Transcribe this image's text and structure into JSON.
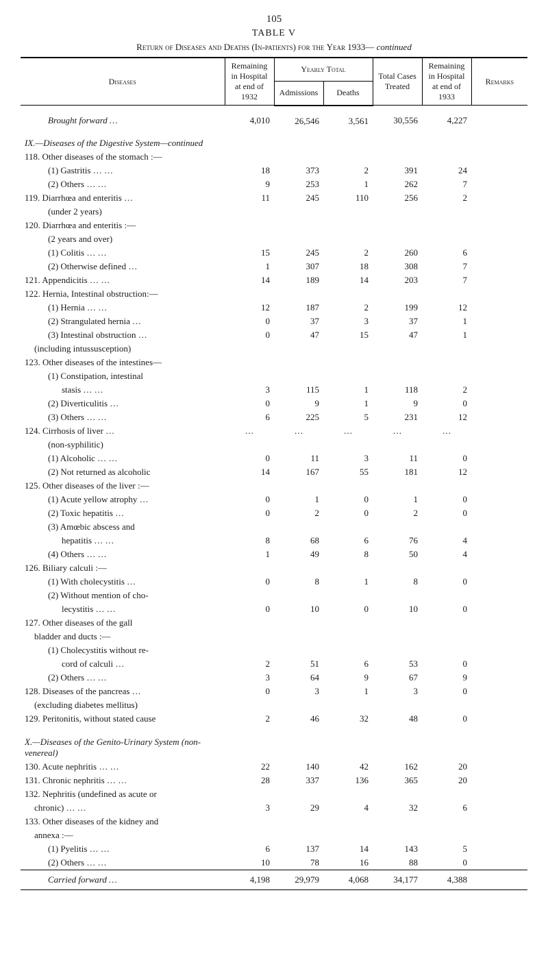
{
  "page_number": "105",
  "table_title": "TABLE  V",
  "table_caption_prefix": "Return of ",
  "table_caption_sc1": "Diseases and Deaths",
  "table_caption_mid": " (In-patients) ",
  "table_caption_sc2": "for the",
  "table_caption_year": " Year 1933—",
  "table_caption_italic": "continued",
  "columns": {
    "diseases": "Diseases",
    "remaining_1932_l1": "Remaining",
    "remaining_1932_l2": "in Hospital",
    "remaining_1932_l3": "at end of",
    "remaining_1932_l4": "1932",
    "yearly_total": "Yearly Total",
    "admissions": "Admissions",
    "deaths": "Deaths",
    "total_cases_l1": "Total Cases",
    "total_cases_l2": "Treated",
    "remaining_1933_l1": "Remaining",
    "remaining_1933_l2": "in Hospital",
    "remaining_1933_l3": "at end of",
    "remaining_1933_l4": "1933",
    "remarks": "Remarks"
  },
  "brought": {
    "label": "Brought forward   …",
    "v": [
      "4,010",
      "26,546",
      "3,561",
      "30,556",
      "4,227"
    ]
  },
  "section_ix": "IX.—Diseases of the Digestive System—continued",
  "section_x": "X.—Diseases of the Genito-Urinary System  (non-venereal)",
  "rows": [
    {
      "d": "118. Other diseases of the stomach :—",
      "v": [
        "",
        "",
        "",
        "",
        ""
      ]
    },
    {
      "d": "(1) Gastritis     …          …",
      "cls": "indent2",
      "v": [
        "18",
        "373",
        "2",
        "391",
        "24"
      ]
    },
    {
      "d": "(2) Others      …          …",
      "cls": "indent2",
      "v": [
        "9",
        "253",
        "1",
        "262",
        "7"
      ]
    },
    {
      "d": "119. Diarrhœa and enteritis          …",
      "v": [
        "11",
        "245",
        "110",
        "256",
        "2"
      ]
    },
    {
      "d": "(under 2 years)",
      "cls": "indent2",
      "v": [
        "",
        "",
        "",
        "",
        ""
      ]
    },
    {
      "d": "120. Diarrhœa and enteritis :—",
      "v": [
        "",
        "",
        "",
        "",
        ""
      ]
    },
    {
      "d": "(2 years and over)",
      "cls": "indent2",
      "v": [
        "",
        "",
        "",
        "",
        ""
      ]
    },
    {
      "d": "(1) Colitis      …          …",
      "cls": "indent2",
      "v": [
        "15",
        "245",
        "2",
        "260",
        "6"
      ]
    },
    {
      "d": "(2) Otherwise defined      …",
      "cls": "indent2",
      "v": [
        "1",
        "307",
        "18",
        "308",
        "7"
      ]
    },
    {
      "d": "121. Appendicitis        …          …",
      "v": [
        "14",
        "189",
        "14",
        "203",
        "7"
      ]
    },
    {
      "d": "122. Hernia, Intestinal obstruction:—",
      "v": [
        "",
        "",
        "",
        "",
        ""
      ]
    },
    {
      "d": "(1) Hernia      …          …",
      "cls": "indent2",
      "v": [
        "12",
        "187",
        "2",
        "199",
        "12"
      ]
    },
    {
      "d": "(2) Strangulated hernia     …",
      "cls": "indent2",
      "v": [
        "0",
        "37",
        "3",
        "37",
        "1"
      ]
    },
    {
      "d": "(3) Intestinal obstruction …",
      "cls": "indent2",
      "v": [
        "0",
        "47",
        "15",
        "47",
        "1"
      ]
    },
    {
      "d": "(including intussusception)",
      "cls": "indent1",
      "v": [
        "",
        "",
        "",
        "",
        ""
      ]
    },
    {
      "d": "123. Other diseases of the intestines—",
      "v": [
        "",
        "",
        "",
        "",
        ""
      ]
    },
    {
      "d": "(1) Constipation,   intestinal",
      "cls": "indent2",
      "v": [
        "",
        "",
        "",
        "",
        ""
      ]
    },
    {
      "d": "stasis      …          …",
      "cls": "indent3",
      "v": [
        "3",
        "115",
        "1",
        "118",
        "2"
      ]
    },
    {
      "d": "(2) Diverticulitis          …",
      "cls": "indent2",
      "v": [
        "0",
        "9",
        "1",
        "9",
        "0"
      ]
    },
    {
      "d": "(3) Others      …          …",
      "cls": "indent2",
      "v": [
        "6",
        "225",
        "5",
        "231",
        "12"
      ]
    },
    {
      "d": "124. Cirrhosis of liver           …",
      "ell": true,
      "v": [
        "…",
        "…",
        "…",
        "…",
        "…"
      ]
    },
    {
      "d": "(non-syphilitic)",
      "cls": "indent2",
      "v": [
        "",
        "",
        "",
        "",
        ""
      ]
    },
    {
      "d": "(1) Alcoholic    …          …",
      "cls": "indent2",
      "v": [
        "0",
        "11",
        "3",
        "11",
        "0"
      ]
    },
    {
      "d": "(2) Not returned as alcoholic",
      "cls": "indent2",
      "v": [
        "14",
        "167",
        "55",
        "181",
        "12"
      ]
    },
    {
      "d": "125. Other diseases of the liver :—",
      "v": [
        "",
        "",
        "",
        "",
        ""
      ]
    },
    {
      "d": "(1) Acute yellow atrophy …",
      "cls": "indent2",
      "v": [
        "0",
        "1",
        "0",
        "1",
        "0"
      ]
    },
    {
      "d": "(2) Toxic hepatitis         …",
      "cls": "indent2",
      "v": [
        "0",
        "2",
        "0",
        "2",
        "0"
      ]
    },
    {
      "d": "(3) Amœbic   abscess   and",
      "cls": "indent2",
      "v": [
        "",
        "",
        "",
        "",
        ""
      ]
    },
    {
      "d": "hepatitis  …          …",
      "cls": "indent3",
      "v": [
        "8",
        "68",
        "6",
        "76",
        "4"
      ]
    },
    {
      "d": "(4) Others      …          …",
      "cls": "indent2",
      "v": [
        "1",
        "49",
        "8",
        "50",
        "4"
      ]
    },
    {
      "d": "126. Biliary calculi :—",
      "v": [
        "",
        "",
        "",
        "",
        ""
      ]
    },
    {
      "d": "(1) With cholecystitis     …",
      "cls": "indent2",
      "v": [
        "0",
        "8",
        "1",
        "8",
        "0"
      ]
    },
    {
      "d": "(2) Without mention of cho-",
      "cls": "indent2",
      "v": [
        "",
        "",
        "",
        "",
        ""
      ]
    },
    {
      "d": "lecystitis …          …",
      "cls": "indent3",
      "v": [
        "0",
        "10",
        "0",
        "10",
        "0"
      ]
    },
    {
      "d": "127. Other   diseases   of   the   gall",
      "v": [
        "",
        "",
        "",
        "",
        ""
      ]
    },
    {
      "d": "bladder and ducts :—",
      "cls": "indent1",
      "v": [
        "",
        "",
        "",
        "",
        ""
      ]
    },
    {
      "d": "(1) Cholecystitis without re-",
      "cls": "indent2",
      "v": [
        "",
        "",
        "",
        "",
        ""
      ]
    },
    {
      "d": "cord of calculi        …",
      "cls": "indent3",
      "v": [
        "2",
        "51",
        "6",
        "53",
        "0"
      ]
    },
    {
      "d": "(2) Others      …          …",
      "cls": "indent2",
      "v": [
        "3",
        "64",
        "9",
        "67",
        "9"
      ]
    },
    {
      "d": "128. Diseases of the pancreas       …",
      "v": [
        "0",
        "3",
        "1",
        "3",
        "0"
      ]
    },
    {
      "d": "(excluding diabetes mellitus)",
      "cls": "indent1",
      "v": [
        "",
        "",
        "",
        "",
        ""
      ]
    },
    {
      "d": "129. Peritonitis, without stated cause",
      "v": [
        "2",
        "46",
        "32",
        "48",
        "0"
      ]
    }
  ],
  "rows_x": [
    {
      "d": "130. Acute nephritis     …         …",
      "v": [
        "22",
        "140",
        "42",
        "162",
        "20"
      ]
    },
    {
      "d": "131. Chronic nephritis …           …",
      "v": [
        "28",
        "337",
        "136",
        "365",
        "20"
      ]
    },
    {
      "d": "132. Nephritis (undefined as acute or",
      "v": [
        "",
        "",
        "",
        "",
        ""
      ]
    },
    {
      "d": "chronic)         …          …",
      "cls": "indent1",
      "v": [
        "3",
        "29",
        "4",
        "32",
        "6"
      ]
    },
    {
      "d": "133. Other diseases of the kidney and",
      "v": [
        "",
        "",
        "",
        "",
        ""
      ]
    },
    {
      "d": "annexa :—",
      "cls": "indent1",
      "v": [
        "",
        "",
        "",
        "",
        ""
      ]
    },
    {
      "d": "(1) Pyelitis     …          …",
      "cls": "indent2",
      "v": [
        "6",
        "137",
        "14",
        "143",
        "5"
      ]
    },
    {
      "d": "(2) Others      …          …",
      "cls": "indent2",
      "v": [
        "10",
        "78",
        "16",
        "88",
        "0"
      ]
    }
  ],
  "carried": {
    "label": "Carried forward   …",
    "v": [
      "4,198",
      "29,979",
      "4,068",
      "34,177",
      "4,388"
    ]
  }
}
